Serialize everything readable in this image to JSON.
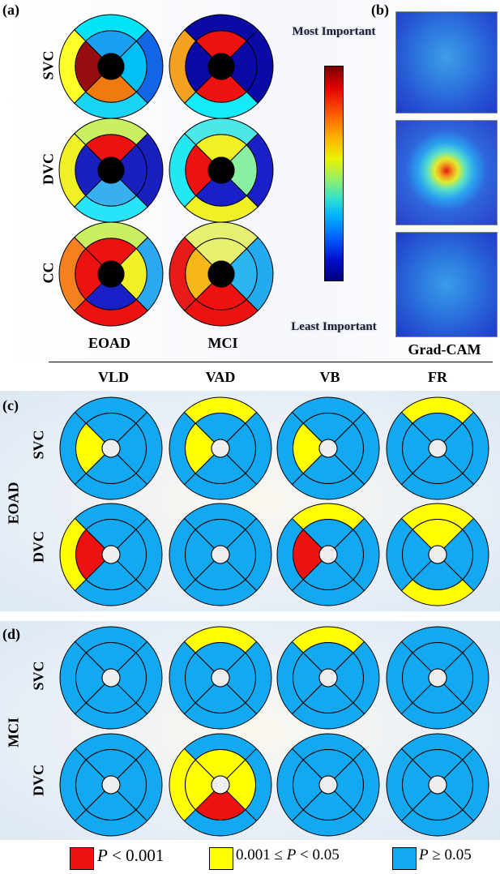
{
  "colors": {
    "red": "#ee1111",
    "yellow": "#ffff00",
    "blue": "#12a9f0",
    "center": "#eeeeee",
    "white_center_panel_a": "#000000"
  },
  "panel_a": {
    "label": "(a)",
    "rows": [
      "SVC",
      "DVC",
      "CC"
    ],
    "cols": [
      "EOAD",
      "MCI"
    ],
    "colorbar": {
      "top": "Most Important",
      "bottom": "Least Important"
    },
    "maps": [
      [
        [
          "#00e4f8",
          "#1066e6",
          "#1ad4f4",
          "#ffff2a",
          "#1aa0f0",
          "#00c0f6",
          "#ee7a10",
          "#980e10",
          "#000000"
        ],
        [
          "#0a0aa6",
          "#0a0aa6",
          "#14eaf8",
          "#f4a020",
          "#ee1111",
          "#0a0aa6",
          "#ee1111",
          "#0a0aa6",
          "#000000"
        ]
      ],
      [
        [
          "#c8f060",
          "#1a20c0",
          "#28e4f8",
          "#f0f026",
          "#ee1111",
          "#1a20c0",
          "#38b0f0",
          "#1a20c0",
          "#000000"
        ],
        [
          "#4ce8e8",
          "#1a20c8",
          "#f0f026",
          "#22e8f4",
          "#f0f026",
          "#88f0a0",
          "#1a20c8",
          "#ee1111",
          "#000000"
        ]
      ],
      [
        [
          "#c8f060",
          "#2aa8f0",
          "#ee1111",
          "#f48020",
          "#ee1111",
          "#f0f026",
          "#1a20c8",
          "#ee1111",
          "#000000"
        ],
        [
          "#e6f070",
          "#24aaf0",
          "#ee1111",
          "#e81a1a",
          "#e8f070",
          "#2ab4f0",
          "#ee1111",
          "#f6b818",
          "#000000"
        ]
      ]
    ]
  },
  "panel_b": {
    "label": "(b)",
    "caption": "Grad-CAM"
  },
  "divider": true,
  "columns": [
    "VLD",
    "VAD",
    "VB",
    "FR"
  ],
  "panel_c": {
    "label": "(c)",
    "group": "EOAD",
    "rows": [
      "SVC",
      "DVC"
    ],
    "maps": [
      [
        "0000000Y",
        "Y000000Y",
        "0000000Y",
        "Y0000000"
      ],
      [
        "000Y000R",
        "00000000",
        "Y000000R",
        "Y0Y0Y000"
      ]
    ]
  },
  "panel_d": {
    "label": "(d)",
    "group": "MCI",
    "rows": [
      "SVC",
      "DVC"
    ],
    "maps": [
      [
        "00000000",
        "Y0000000",
        "Y0000000",
        "00000000"
      ],
      [
        "00000000",
        "000YYYRY",
        "00000000",
        "00000000"
      ]
    ]
  },
  "legend": {
    "items": [
      {
        "color": "#ee1111",
        "label": "P < 0.001"
      },
      {
        "color": "#ffff00",
        "label": "0.001 ≤ P < 0.05"
      },
      {
        "color": "#12a9f0",
        "label": "P ≥ 0.05"
      }
    ],
    "p_italic": "P",
    "item1_rest": " < 0.001",
    "item2_left": "0.001 ≤ ",
    "item2_rest": " < 0.05",
    "item3_rest": " ≥ 0.05"
  }
}
